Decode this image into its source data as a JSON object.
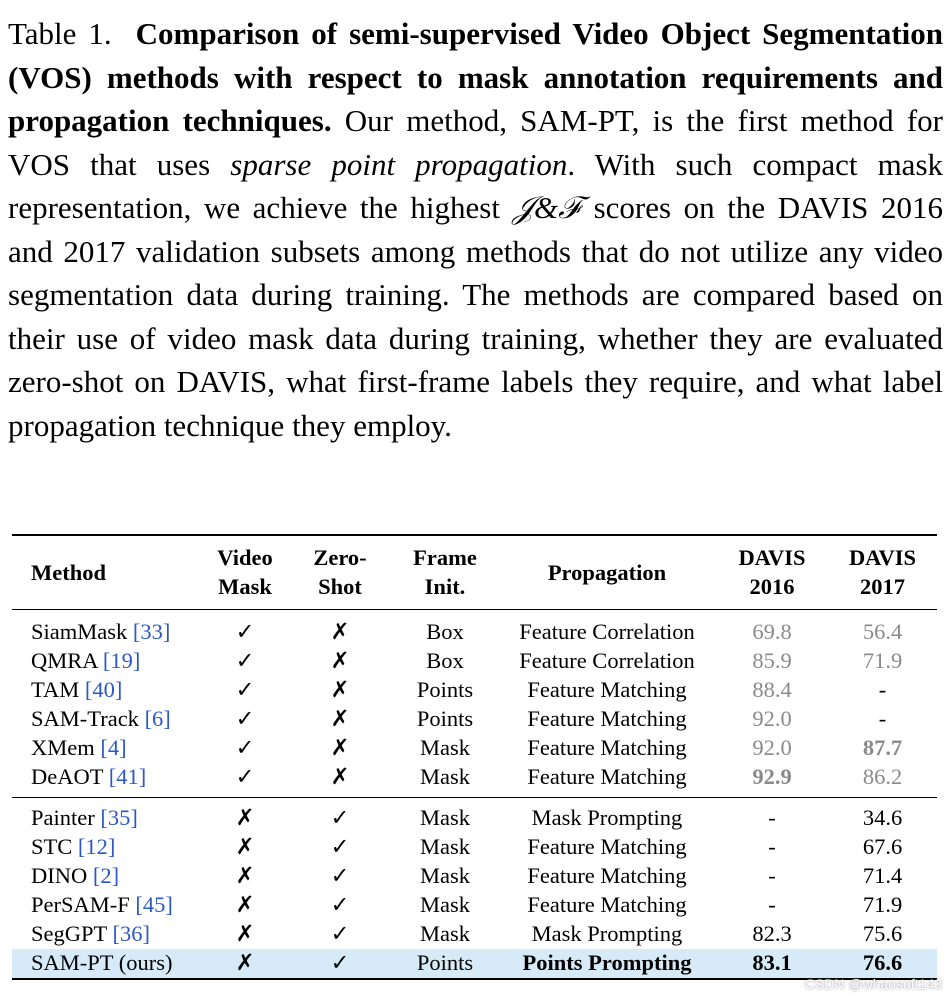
{
  "caption": {
    "label": "Table 1.",
    "bold": "Comparison of semi-supervised Video Object Segmentation (VOS) methods with respect to mask annotation requirements and propagation techniques.",
    "text1": "Our method, SAM-PT, is the first method for VOS that uses",
    "italic": "sparse point propagation",
    "text2": ". With such compact mask representation, we achieve the highest",
    "metric": "𝒥&ℱ",
    "text3": "scores on the DAVIS 2016 and 2017 validation subsets among methods that do not utilize any video segmentation data during training. The methods are compared based on their use of video mask data during training, whether they are evaluated zero-shot on DAVIS, what first-frame labels they require, and what label propagation technique they employ."
  },
  "table": {
    "headers": {
      "method": "Method",
      "video_mask": [
        "Video",
        "Mask"
      ],
      "zero_shot": [
        "Zero-",
        "Shot"
      ],
      "frame_init": [
        "Frame",
        "Init."
      ],
      "propagation": "Propagation",
      "davis2016": [
        "DAVIS",
        "2016"
      ],
      "davis2017": [
        "DAVIS",
        "2017"
      ]
    },
    "group1": [
      {
        "name": "SiamMask",
        "ref": "[33]",
        "video_mask": "✓",
        "zero_shot": "✗",
        "frame_init": "Box",
        "propagation": "Feature Correlation",
        "d2016": "69.8",
        "d2017": "56.4"
      },
      {
        "name": "QMRA",
        "ref": "[19]",
        "video_mask": "✓",
        "zero_shot": "✗",
        "frame_init": "Box",
        "propagation": "Feature Correlation",
        "d2016": "85.9",
        "d2017": "71.9"
      },
      {
        "name": "TAM",
        "ref": "[40]",
        "video_mask": "✓",
        "zero_shot": "✗",
        "frame_init": "Points",
        "propagation": "Feature Matching",
        "d2016": "88.4",
        "d2017": "-"
      },
      {
        "name": "SAM-Track",
        "ref": "[6]",
        "video_mask": "✓",
        "zero_shot": "✗",
        "frame_init": "Points",
        "propagation": "Feature Matching",
        "d2016": "92.0",
        "d2017": "-"
      },
      {
        "name": "XMem",
        "ref": "[4]",
        "video_mask": "✓",
        "zero_shot": "✗",
        "frame_init": "Mask",
        "propagation": "Feature Matching",
        "d2016": "92.0",
        "d2017": "87.7"
      },
      {
        "name": "DeAOT",
        "ref": "[41]",
        "video_mask": "✓",
        "zero_shot": "✗",
        "frame_init": "Mask",
        "propagation": "Feature Matching",
        "d2016": "92.9",
        "d2017": "86.2"
      }
    ],
    "group2": [
      {
        "name": "Painter",
        "ref": "[35]",
        "video_mask": "✗",
        "zero_shot": "✓",
        "frame_init": "Mask",
        "propagation": "Mask Prompting",
        "d2016": "-",
        "d2017": "34.6"
      },
      {
        "name": "STC",
        "ref": "[12]",
        "video_mask": "✗",
        "zero_shot": "✓",
        "frame_init": "Mask",
        "propagation": "Feature Matching",
        "d2016": "-",
        "d2017": "67.6"
      },
      {
        "name": "DINO",
        "ref": "[2]",
        "video_mask": "✗",
        "zero_shot": "✓",
        "frame_init": "Mask",
        "propagation": "Feature Matching",
        "d2016": "-",
        "d2017": "71.4"
      },
      {
        "name": "PerSAM-F",
        "ref": "[45]",
        "video_mask": "✗",
        "zero_shot": "✓",
        "frame_init": "Mask",
        "propagation": "Feature Matching",
        "d2016": "-",
        "d2017": "71.9"
      },
      {
        "name": "SegGPT",
        "ref": "[36]",
        "video_mask": "✗",
        "zero_shot": "✓",
        "frame_init": "Mask",
        "propagation": "Mask Prompting",
        "d2016": "82.3",
        "d2017": "75.6"
      },
      {
        "name": "SAM-PT (ours)",
        "ref": "",
        "video_mask": "✗",
        "zero_shot": "✓",
        "frame_init": "Points",
        "propagation": "Points Prompting",
        "d2016": "83.1",
        "d2017": "76.6"
      }
    ]
  },
  "watermark": "CSDN @whaosoft143",
  "colors": {
    "reference": "#2b58c4",
    "grey_value": "#8a8a8a",
    "highlight": "#d6ebf7"
  }
}
